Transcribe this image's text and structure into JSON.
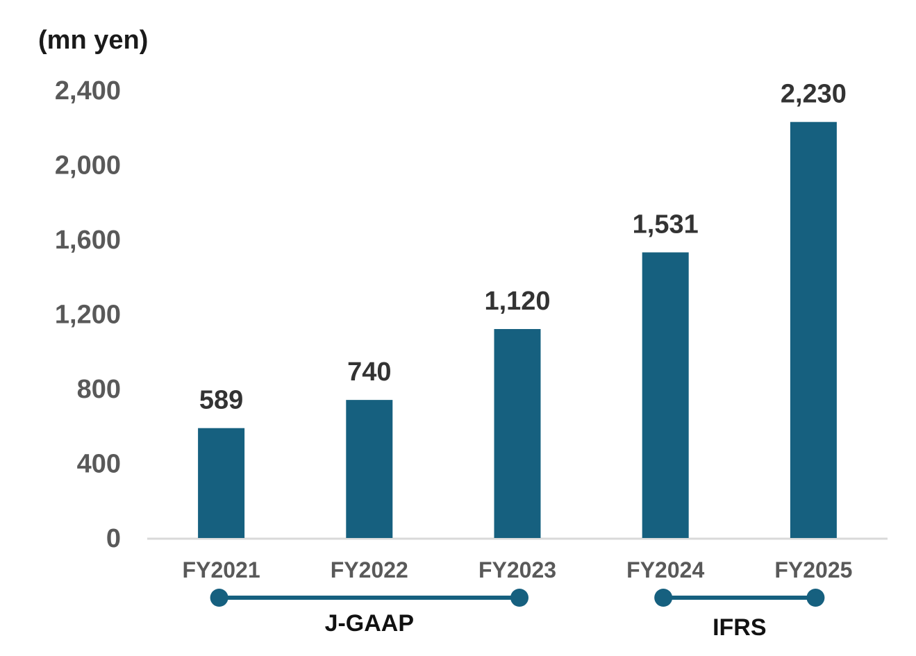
{
  "chart_data": {
    "type": "bar",
    "unit_label": "(mn yen)",
    "categories": [
      "FY2021",
      "FY2022",
      "FY2023",
      "FY2024",
      "FY2025"
    ],
    "values": [
      589,
      740,
      1120,
      1531,
      2230
    ],
    "data_labels": [
      "589",
      "740",
      "1,120",
      "1,531",
      "2,230"
    ],
    "ylim": [
      0,
      2400
    ],
    "yticks": [
      0,
      400,
      800,
      1200,
      1600,
      2000,
      2400
    ],
    "ytick_labels": [
      "0",
      "400",
      "800",
      "1,200",
      "1,600",
      "2,000",
      "2,400"
    ],
    "grid": false,
    "bar_color": "#16607f",
    "axis_color": "#d9d9d9",
    "groups": [
      {
        "label": "J-GAAP",
        "from": "FY2021",
        "to": "FY2023"
      },
      {
        "label": "IFRS",
        "from": "FY2024",
        "to": "FY2025"
      }
    ],
    "group_color": "#16607f"
  }
}
